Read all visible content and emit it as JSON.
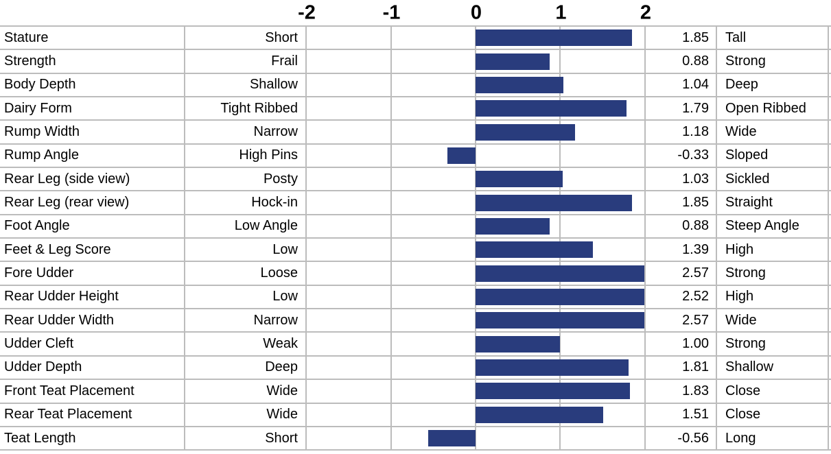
{
  "colors": {
    "bar": "#293c7d",
    "grid": "#bcbcbc",
    "text": "#000000",
    "background": "#ffffff"
  },
  "chart_data": {
    "type": "bar",
    "orientation": "horizontal",
    "title": "",
    "xlabel": "",
    "ylabel": "",
    "xlim": [
      -2,
      2
    ],
    "grid": true,
    "axis_ticks": [
      "-2",
      "-1",
      "0",
      "1",
      "2"
    ],
    "note": "Bars exceeding +2 are clipped at the chart edge",
    "rows": [
      {
        "trait": "Stature",
        "low": "Short",
        "value": "1.85",
        "high": "Tall"
      },
      {
        "trait": "Strength",
        "low": "Frail",
        "value": "0.88",
        "high": "Strong"
      },
      {
        "trait": "Body Depth",
        "low": "Shallow",
        "value": "1.04",
        "high": "Deep"
      },
      {
        "trait": "Dairy Form",
        "low": "Tight Ribbed",
        "value": "1.79",
        "high": "Open Ribbed"
      },
      {
        "trait": "Rump Width",
        "low": "Narrow",
        "value": "1.18",
        "high": "Wide"
      },
      {
        "trait": "Rump Angle",
        "low": "High Pins",
        "value": "-0.33",
        "high": "Sloped"
      },
      {
        "trait": "Rear Leg (side view)",
        "low": "Posty",
        "value": "1.03",
        "high": "Sickled"
      },
      {
        "trait": "Rear Leg (rear view)",
        "low": "Hock-in",
        "value": "1.85",
        "high": "Straight"
      },
      {
        "trait": "Foot Angle",
        "low": "Low Angle",
        "value": "0.88",
        "high": "Steep Angle"
      },
      {
        "trait": "Feet & Leg Score",
        "low": "Low",
        "value": "1.39",
        "high": "High"
      },
      {
        "trait": "Fore Udder",
        "low": "Loose",
        "value": "2.57",
        "high": "Strong"
      },
      {
        "trait": "Rear Udder Height",
        "low": "Low",
        "value": "2.52",
        "high": "High"
      },
      {
        "trait": "Rear Udder Width",
        "low": "Narrow",
        "value": "2.57",
        "high": "Wide"
      },
      {
        "trait": "Udder Cleft",
        "low": "Weak",
        "value": "1.00",
        "high": "Strong"
      },
      {
        "trait": "Udder Depth",
        "low": "Deep",
        "value": "1.81",
        "high": "Shallow"
      },
      {
        "trait": "Front Teat Placement",
        "low": "Wide",
        "value": "1.83",
        "high": "Close"
      },
      {
        "trait": "Rear Teat Placement",
        "low": "Wide",
        "value": "1.51",
        "high": "Close"
      },
      {
        "trait": "Teat Length",
        "low": "Short",
        "value": "-0.56",
        "high": "Long"
      }
    ]
  }
}
